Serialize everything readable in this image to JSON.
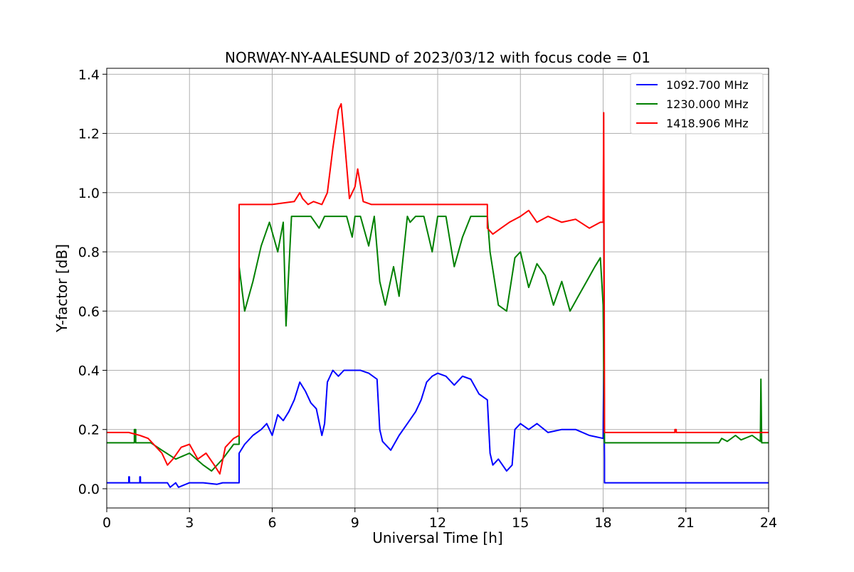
{
  "chart_data": {
    "type": "line",
    "title": "NORWAY-NY-AALESUND of 2023/03/12 with focus code = 01",
    "xlabel": "Universal Time [h]",
    "ylabel": "Y-factor [dB]",
    "xlim": [
      0,
      24
    ],
    "ylim": [
      -0.065,
      1.42
    ],
    "xticks": [
      0,
      3,
      6,
      9,
      12,
      15,
      18,
      21,
      24
    ],
    "xtick_labels": [
      "0",
      "3",
      "6",
      "9",
      "12",
      "15",
      "18",
      "21",
      "24"
    ],
    "yticks": [
      0.0,
      0.2,
      0.4,
      0.6,
      0.8,
      1.0,
      1.2,
      1.4
    ],
    "ytick_labels": [
      "0.0",
      "0.2",
      "0.4",
      "0.6",
      "0.8",
      "1.0",
      "1.2",
      "1.4"
    ],
    "grid": true,
    "legend_position": "top-right",
    "series": [
      {
        "name": "1092.700 MHz",
        "color": "#0000ff",
        "x": [
          0,
          0.8,
          0.8,
          0.82,
          0.82,
          1.2,
          1.2,
          1.22,
          1.22,
          2.2,
          2.3,
          2.5,
          2.6,
          3.0,
          3.5,
          4.0,
          4.2,
          4.8,
          4.8,
          5.0,
          5.3,
          5.6,
          5.8,
          6.0,
          6.2,
          6.4,
          6.6,
          6.8,
          7.0,
          7.2,
          7.4,
          7.6,
          7.8,
          7.9,
          8.0,
          8.2,
          8.4,
          8.6,
          8.8,
          9.0,
          9.2,
          9.5,
          9.8,
          9.9,
          10.0,
          10.3,
          10.6,
          10.9,
          11.2,
          11.4,
          11.6,
          11.8,
          12.0,
          12.3,
          12.6,
          12.9,
          13.2,
          13.5,
          13.8,
          13.9,
          14.0,
          14.2,
          14.5,
          14.7,
          14.8,
          15.0,
          15.3,
          15.6,
          16.0,
          16.5,
          17.0,
          17.5,
          18.0,
          18.02,
          18.05,
          18.05,
          24
        ],
        "y": [
          0.02,
          0.02,
          0.04,
          0.04,
          0.02,
          0.02,
          0.04,
          0.04,
          0.02,
          0.02,
          0.005,
          0.02,
          0.005,
          0.02,
          0.02,
          0.015,
          0.02,
          0.02,
          0.12,
          0.15,
          0.18,
          0.2,
          0.22,
          0.18,
          0.25,
          0.23,
          0.26,
          0.3,
          0.36,
          0.33,
          0.29,
          0.27,
          0.18,
          0.22,
          0.36,
          0.4,
          0.38,
          0.4,
          0.4,
          0.4,
          0.4,
          0.39,
          0.37,
          0.2,
          0.16,
          0.13,
          0.18,
          0.22,
          0.26,
          0.3,
          0.36,
          0.38,
          0.39,
          0.38,
          0.35,
          0.38,
          0.37,
          0.32,
          0.3,
          0.12,
          0.08,
          0.1,
          0.06,
          0.08,
          0.2,
          0.22,
          0.2,
          0.22,
          0.19,
          0.2,
          0.2,
          0.18,
          0.17,
          0.4,
          0.1,
          0.02,
          0.02
        ]
      },
      {
        "name": "1230.000 MHz",
        "color": "#008000",
        "x": [
          0,
          1.0,
          1.0,
          1.05,
          1.05,
          1.6,
          2.0,
          2.5,
          3.0,
          3.5,
          3.8,
          4.2,
          4.6,
          4.8,
          4.8,
          5.0,
          5.3,
          5.6,
          5.9,
          6.2,
          6.4,
          6.5,
          6.7,
          7.0,
          7.2,
          7.4,
          7.7,
          7.9,
          8.1,
          8.4,
          8.7,
          8.9,
          9.0,
          9.2,
          9.5,
          9.7,
          9.9,
          10.1,
          10.4,
          10.6,
          10.9,
          11.0,
          11.2,
          11.5,
          11.8,
          12.0,
          12.3,
          12.6,
          12.9,
          13.2,
          13.5,
          13.8,
          13.9,
          14.2,
          14.5,
          14.8,
          15.0,
          15.3,
          15.6,
          15.9,
          16.2,
          16.5,
          16.8,
          17.1,
          17.4,
          17.7,
          17.9,
          18.0,
          18.05,
          18.05,
          22.2,
          22.3,
          22.5,
          22.8,
          23.0,
          23.4,
          23.7,
          23.72,
          23.75,
          23.75,
          24
        ],
        "y": [
          0.155,
          0.155,
          0.2,
          0.2,
          0.155,
          0.155,
          0.13,
          0.1,
          0.12,
          0.08,
          0.06,
          0.1,
          0.15,
          0.15,
          0.75,
          0.6,
          0.7,
          0.82,
          0.9,
          0.8,
          0.9,
          0.55,
          0.92,
          0.92,
          0.92,
          0.92,
          0.88,
          0.92,
          0.92,
          0.92,
          0.92,
          0.85,
          0.92,
          0.92,
          0.82,
          0.92,
          0.7,
          0.62,
          0.75,
          0.65,
          0.92,
          0.9,
          0.92,
          0.92,
          0.8,
          0.92,
          0.92,
          0.75,
          0.85,
          0.92,
          0.92,
          0.92,
          0.8,
          0.62,
          0.6,
          0.78,
          0.8,
          0.68,
          0.76,
          0.72,
          0.62,
          0.7,
          0.6,
          0.65,
          0.7,
          0.75,
          0.78,
          0.62,
          0.155,
          0.155,
          0.155,
          0.17,
          0.16,
          0.18,
          0.165,
          0.18,
          0.16,
          0.37,
          0.155,
          0.155,
          0.155
        ]
      },
      {
        "name": "1418.906 MHz",
        "color": "#ff0000",
        "x": [
          0,
          0.8,
          1.2,
          1.5,
          1.8,
          2.0,
          2.2,
          2.4,
          2.7,
          3.0,
          3.3,
          3.6,
          3.9,
          4.1,
          4.3,
          4.6,
          4.8,
          4.8,
          5.0,
          6.0,
          6.8,
          7.0,
          7.1,
          7.3,
          7.5,
          7.8,
          8.0,
          8.2,
          8.4,
          8.5,
          8.6,
          8.8,
          9.0,
          9.1,
          9.3,
          9.6,
          10.0,
          11.0,
          12.0,
          13.0,
          13.8,
          13.8,
          14.0,
          14.3,
          14.6,
          15.0,
          15.3,
          15.6,
          16.0,
          16.5,
          17.0,
          17.5,
          17.9,
          18.0,
          18.02,
          18.05,
          18.05,
          20.6,
          20.6,
          20.65,
          20.65,
          24
        ],
        "y": [
          0.19,
          0.19,
          0.18,
          0.17,
          0.14,
          0.12,
          0.08,
          0.1,
          0.14,
          0.15,
          0.1,
          0.12,
          0.08,
          0.05,
          0.14,
          0.17,
          0.18,
          0.96,
          0.96,
          0.96,
          0.97,
          1.0,
          0.98,
          0.96,
          0.97,
          0.96,
          1.0,
          1.15,
          1.28,
          1.3,
          1.2,
          0.98,
          1.02,
          1.08,
          0.97,
          0.96,
          0.96,
          0.96,
          0.96,
          0.96,
          0.96,
          0.88,
          0.86,
          0.88,
          0.9,
          0.92,
          0.94,
          0.9,
          0.92,
          0.9,
          0.91,
          0.88,
          0.9,
          0.9,
          1.27,
          0.3,
          0.19,
          0.19,
          0.2,
          0.2,
          0.19,
          0.19
        ]
      }
    ]
  }
}
